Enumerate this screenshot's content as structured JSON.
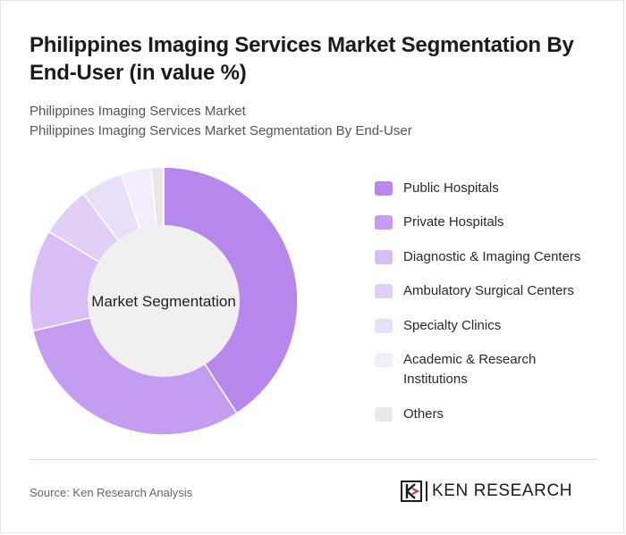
{
  "title": "Philippines Imaging Services Market Segmentation By End-User (in value %)",
  "subtitle_line1": "Philippines Imaging Services Market",
  "subtitle_line2": "Philippines Imaging Services Market Segmentation By End-User",
  "source": "Source: Ken Research Analysis",
  "logo_text": "KEN RESEARCH",
  "chart_data": {
    "type": "pie",
    "variant": "donut",
    "center_label": "Market Segmentation",
    "legend_position": "right",
    "slices": [
      {
        "name": "Public Hospitals",
        "value": 40,
        "color": "#b787ec"
      },
      {
        "name": "Private Hospitals",
        "value": 30,
        "color": "#c49df0"
      },
      {
        "name": "Diagnostic & Imaging Centers",
        "value": 12,
        "color": "#d8bef4"
      },
      {
        "name": "Ambulatory Surgical Centers",
        "value": 6,
        "color": "#e2cff6"
      },
      {
        "name": "Specialty Clinics",
        "value": 5,
        "color": "#eadff8"
      },
      {
        "name": "Academic & Research Institutions",
        "value": 3.5,
        "color": "#f3ecfb"
      },
      {
        "name": "Others",
        "value": 1.5,
        "color": "#e9e9e9"
      }
    ]
  }
}
